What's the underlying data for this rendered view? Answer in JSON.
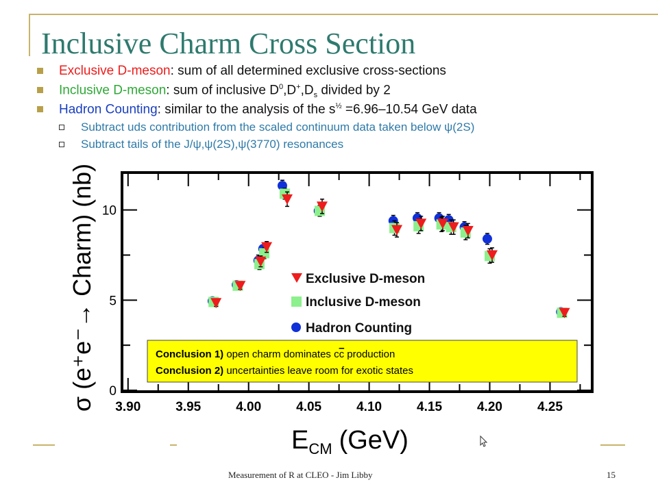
{
  "slide": {
    "title": "Inclusive Charm Cross Section",
    "bullets": [
      {
        "lead": "Exclusive D-meson",
        "text": ": sum of all determined exclusive cross-sections"
      },
      {
        "lead": "Inclusive D-meson",
        "text": ": sum of inclusive D",
        "sup0": "0",
        "mid1": ",D",
        "sup1": "+",
        "mid2": ",D",
        "sub2": "s",
        "tail": " divided by 2"
      },
      {
        "lead": "Hadron Counting",
        "text": ": similar to the analysis of the s",
        "sup": "½",
        "tail": " =6.96–10.54 GeV data"
      }
    ],
    "subbullets": [
      "Subtract uds contribution from the scaled continuum data taken below ψ(2S)",
      "Subtract tails of the J/ψ,ψ(2S),ψ(3770) resonances"
    ],
    "footer_center": "Measurement of R at CLEO - Jim Libby",
    "footer_page": "15"
  },
  "chart_data": {
    "type": "scatter",
    "xlabel": "E",
    "xlabel_sub": "CM",
    "xlabel_unit": "(GeV)",
    "ylabel": "σ (e⁺e⁻→ Charm) (nb)",
    "xlim": [
      3.895,
      4.285
    ],
    "ylim": [
      0,
      12
    ],
    "xticks": [
      3.9,
      3.95,
      4.0,
      4.05,
      4.1,
      4.15,
      4.2,
      4.25
    ],
    "xtick_labels": [
      "3.90",
      "3.95",
      "4.00",
      "4.05",
      "4.10",
      "4.15",
      "4.20",
      "4.25"
    ],
    "yticks": [
      0,
      5,
      10
    ],
    "ytick_labels": [
      "0",
      "5",
      "10"
    ],
    "legend": [
      {
        "name": "Exclusive D-meson",
        "marker": "triangle-down",
        "color": "#ee1c1c"
      },
      {
        "name": "Inclusive D-meson",
        "marker": "square",
        "color": "#8cf08c"
      },
      {
        "name": "Hadron Counting",
        "marker": "circle",
        "color": "#1030d8"
      }
    ],
    "series": [
      {
        "name": "Hadron Counting",
        "marker": "circle",
        "color": "#1030d8",
        "x": [
          3.97,
          3.99,
          4.008,
          4.012,
          4.028,
          4.058,
          4.12,
          4.14,
          4.158,
          4.166,
          4.179,
          4.198,
          4.259
        ],
        "y": [
          4.95,
          5.85,
          7.2,
          7.85,
          11.35,
          9.95,
          9.4,
          9.55,
          9.55,
          9.45,
          9.05,
          8.4,
          4.35
        ],
        "err": [
          0.15,
          0.2,
          0.3,
          0.2,
          0.3,
          0.2,
          0.3,
          0.3,
          0.3,
          0.3,
          0.3,
          0.3,
          0.15
        ]
      },
      {
        "name": "Inclusive D-meson",
        "marker": "square",
        "color": "#8cf08c",
        "x": [
          3.971,
          3.991,
          4.009,
          4.013,
          4.03,
          4.059,
          4.121,
          4.141,
          4.16,
          4.168,
          4.18,
          4.2,
          4.26
        ],
        "y": [
          4.9,
          5.8,
          7.0,
          7.6,
          10.9,
          9.95,
          9.0,
          9.1,
          9.2,
          9.05,
          8.75,
          7.45,
          4.3
        ],
        "err": [
          0.2,
          0.2,
          0.3,
          0.3,
          0.3,
          0.3,
          0.4,
          0.4,
          0.4,
          0.4,
          0.4,
          0.4,
          0.2
        ]
      },
      {
        "name": "Exclusive D-meson",
        "marker": "triangle-down",
        "color": "#ee1c1c",
        "x": [
          3.973,
          3.993,
          4.01,
          4.015,
          4.032,
          4.061,
          4.123,
          4.143,
          4.161,
          4.17,
          4.182,
          4.202,
          4.262
        ],
        "y": [
          4.85,
          5.8,
          7.15,
          7.95,
          10.6,
          10.2,
          8.9,
          9.25,
          9.25,
          9.05,
          8.85,
          7.5,
          4.3
        ],
        "err": [
          0.2,
          0.2,
          0.3,
          0.3,
          0.4,
          0.4,
          0.4,
          0.4,
          0.4,
          0.4,
          0.4,
          0.4,
          0.2
        ]
      }
    ],
    "annotation": {
      "c1_label": "Conclusion 1)",
      "c1_text": " open charm dominates c",
      "c1_cbar": "c",
      "c1_tail": " production",
      "c2_label": "Conclusion 2)",
      "c2_text": " uncertainties leave room for exotic states"
    },
    "grid": false
  }
}
